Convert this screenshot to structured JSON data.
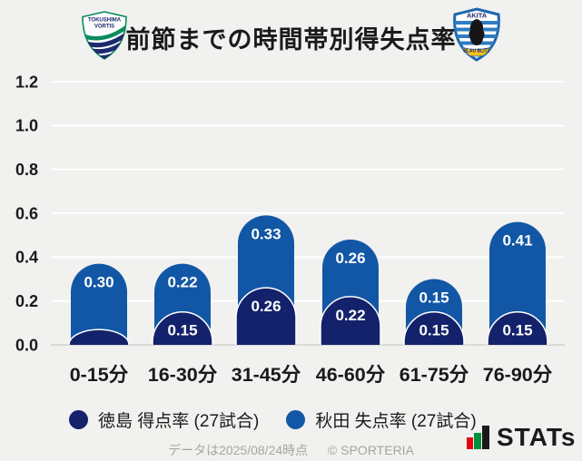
{
  "header": {
    "title": "前節までの時間帯別得失点率",
    "left_logo": {
      "line1": "TOKUSHIMA",
      "line2": "VORTIS"
    },
    "right_logo": {
      "line1": "AKITA",
      "ribbon": "BLAU BLITZ"
    }
  },
  "chart_data": {
    "type": "bar",
    "stacked": true,
    "title": "前節までの時間帯別得失点率",
    "categories": [
      "0-15分",
      "16-30分",
      "31-45分",
      "46-60分",
      "61-75分",
      "76-90分"
    ],
    "series": [
      {
        "name": "徳島 得点率 (27試合)",
        "color": "#14216b",
        "values": [
          0.07,
          0.15,
          0.26,
          0.22,
          0.15,
          0.15
        ],
        "value_labels": [
          "",
          "0.15",
          "0.26",
          "0.22",
          "0.15",
          "0.15"
        ]
      },
      {
        "name": "秋田 失点率 (27試合)",
        "color": "#1257a6",
        "values": [
          0.3,
          0.22,
          0.33,
          0.26,
          0.15,
          0.41
        ],
        "value_labels": [
          "0.30",
          "0.22",
          "0.33",
          "0.26",
          "0.15",
          "0.41"
        ]
      }
    ],
    "ylim": [
      0,
      1.2
    ],
    "yticks": [
      0,
      0.2,
      0.4,
      0.6,
      0.8,
      1.0,
      1.2
    ],
    "ytick_labels": [
      "0.0",
      "0.2",
      "0.4",
      "0.6",
      "0.8",
      "1.0",
      "1.2"
    ],
    "grid": true,
    "legend_position": "bottom",
    "colors": {
      "grid_line": "#ffffff",
      "baseline": "#d9d9d7",
      "value_label": "#ffffff",
      "axis_text": "#1a1a1a"
    }
  },
  "legend": {
    "items": [
      {
        "label": "徳島 得点率 (27試合)",
        "color": "#14216b"
      },
      {
        "label": "秋田 失点率 (27試合)",
        "color": "#1257a6"
      }
    ]
  },
  "footer": {
    "note": "データは2025/08/24時点",
    "copyright": "© SPORTERIA",
    "brand": "STATs"
  }
}
